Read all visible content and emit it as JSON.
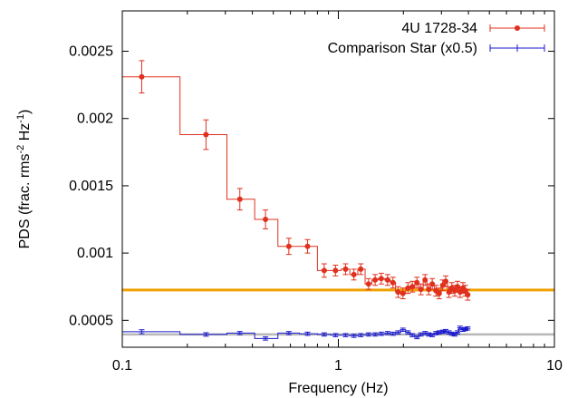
{
  "chart_data": {
    "type": "scatter",
    "xlabel": "Frequency (Hz)",
    "ylabel": {
      "parts": [
        {
          "text": "PDS (frac. rms",
          "sup": false
        },
        {
          "text": "-2",
          "sup": true
        },
        {
          "text": " Hz",
          "sup": false
        },
        {
          "text": "-1",
          "sup": true
        },
        {
          "text": ")",
          "sup": false
        }
      ]
    },
    "x_scale": "log",
    "xlim": [
      0.1,
      10
    ],
    "ylim": [
      0.0003,
      0.0028
    ],
    "x_ticks": [
      {
        "value": 0.1,
        "label": "0.1"
      },
      {
        "value": 1,
        "label": "1"
      },
      {
        "value": 10,
        "label": "10"
      }
    ],
    "y_ticks": [
      {
        "value": 0.0005,
        "label": "0.0005"
      },
      {
        "value": 0.001,
        "label": "0.001"
      },
      {
        "value": 0.0015,
        "label": "0.0015"
      },
      {
        "value": 0.002,
        "label": "0.002"
      },
      {
        "value": 0.0025,
        "label": "0.0025"
      }
    ],
    "grid": false,
    "legend_position": "top-right",
    "series": [
      {
        "name": "4U 1728-34",
        "color": "#e0301e",
        "marker": "circle",
        "x": [
          0.123,
          0.244,
          0.35,
          0.46,
          0.59,
          0.72,
          0.86,
          0.97,
          1.08,
          1.18,
          1.27,
          1.38,
          1.48,
          1.58,
          1.69,
          1.79,
          1.89,
          1.99,
          2.1,
          2.2,
          2.31,
          2.41,
          2.52,
          2.62,
          2.72,
          2.83,
          2.93,
          3.04,
          3.14,
          3.25,
          3.35,
          3.46,
          3.56,
          3.66,
          3.77,
          3.87,
          3.97
        ],
        "y": [
          0.00231,
          0.00188,
          0.0014,
          0.00125,
          0.00105,
          0.00105,
          0.00087,
          0.00087,
          0.00088,
          0.00084,
          0.00088,
          0.00077,
          0.0008,
          0.00081,
          0.0008,
          0.00078,
          0.00071,
          0.0007,
          0.00074,
          0.00075,
          0.00078,
          0.00073,
          0.0008,
          0.00073,
          0.00077,
          0.00072,
          0.0007,
          0.00076,
          0.00079,
          0.00071,
          0.00074,
          0.00072,
          0.00075,
          0.00071,
          0.00074,
          0.00072,
          0.00069
        ],
        "err": [
          0.00012,
          0.00011,
          8e-05,
          7e-05,
          6e-05,
          5e-05,
          5e-05,
          4e-05,
          4e-05,
          4e-05,
          4e-05,
          4e-05,
          4e-05,
          4e-05,
          4e-05,
          4e-05,
          4e-05,
          4e-05,
          4e-05,
          4e-05,
          4e-05,
          4e-05,
          4e-05,
          4e-05,
          4e-05,
          4e-05,
          4e-05,
          4e-05,
          4e-05,
          4e-05,
          4e-05,
          4e-05,
          4e-05,
          4e-05,
          4e-05,
          4e-05,
          4e-05
        ],
        "step_edges": [
          0.1,
          0.185,
          0.305,
          0.41,
          0.525,
          0.66,
          0.8,
          0.92,
          1.03,
          1.13,
          1.23,
          1.33,
          1.43,
          1.53,
          1.64,
          1.74,
          1.84,
          1.94,
          2.05,
          2.15,
          2.26,
          2.36,
          2.47,
          2.57,
          2.67,
          2.78,
          2.88,
          2.99,
          3.09,
          3.2,
          3.3,
          3.41,
          3.51,
          3.61,
          3.72,
          3.82,
          3.92,
          4.0
        ]
      },
      {
        "name": "Comparison Star (x0.5)",
        "color": "#1a1acc",
        "marker": "plus",
        "x": [
          0.123,
          0.244,
          0.35,
          0.46,
          0.59,
          0.72,
          0.86,
          0.97,
          1.08,
          1.18,
          1.27,
          1.38,
          1.48,
          1.58,
          1.69,
          1.79,
          1.89,
          1.99,
          2.1,
          2.2,
          2.31,
          2.41,
          2.52,
          2.62,
          2.72,
          2.83,
          2.93,
          3.04,
          3.14,
          3.25,
          3.35,
          3.46,
          3.56,
          3.66,
          3.77,
          3.87,
          3.97
        ],
        "y": [
          0.000415,
          0.000395,
          0.000405,
          0.000365,
          0.000405,
          0.0004,
          0.000395,
          0.00039,
          0.00039,
          0.000385,
          0.00039,
          0.000395,
          0.000395,
          0.0004,
          0.000405,
          0.0004,
          0.00041,
          0.00043,
          0.00041,
          0.00039,
          0.000375,
          0.000395,
          0.000405,
          0.000395,
          0.00039,
          0.000405,
          0.00041,
          0.000415,
          0.00042,
          0.00041,
          0.0004,
          0.000395,
          0.00041,
          0.000445,
          0.00043,
          0.000435,
          0.00044
        ],
        "err": [
          1.5e-05,
          1.3e-05,
          1.2e-05,
          1.2e-05,
          1.2e-05,
          1.2e-05,
          1.2e-05,
          1.2e-05,
          1.2e-05,
          1.2e-05,
          1.2e-05,
          1.2e-05,
          1.2e-05,
          1.2e-05,
          1.2e-05,
          1.2e-05,
          1.2e-05,
          1.2e-05,
          1.2e-05,
          1.2e-05,
          1.2e-05,
          1.2e-05,
          1.2e-05,
          1.2e-05,
          1.2e-05,
          1.2e-05,
          1.2e-05,
          1.2e-05,
          1.2e-05,
          1.2e-05,
          1.2e-05,
          1.2e-05,
          1.2e-05,
          1.2e-05,
          1.2e-05,
          1.2e-05,
          1.2e-05
        ],
        "step_edges": [
          0.1,
          0.185,
          0.305,
          0.41,
          0.525,
          0.66,
          0.8,
          0.92,
          1.03,
          1.13,
          1.23,
          1.33,
          1.43,
          1.53,
          1.64,
          1.74,
          1.84,
          1.94,
          2.05,
          2.15,
          2.26,
          2.36,
          2.47,
          2.57,
          2.67,
          2.78,
          2.88,
          2.99,
          3.09,
          3.2,
          3.3,
          3.41,
          3.51,
          3.61,
          3.72,
          3.82,
          3.92,
          4.0
        ]
      }
    ],
    "reference_lines": [
      {
        "y": 0.000725,
        "color": "#f0a000"
      },
      {
        "y": 0.000395,
        "color": "#b8b8b8"
      }
    ]
  }
}
